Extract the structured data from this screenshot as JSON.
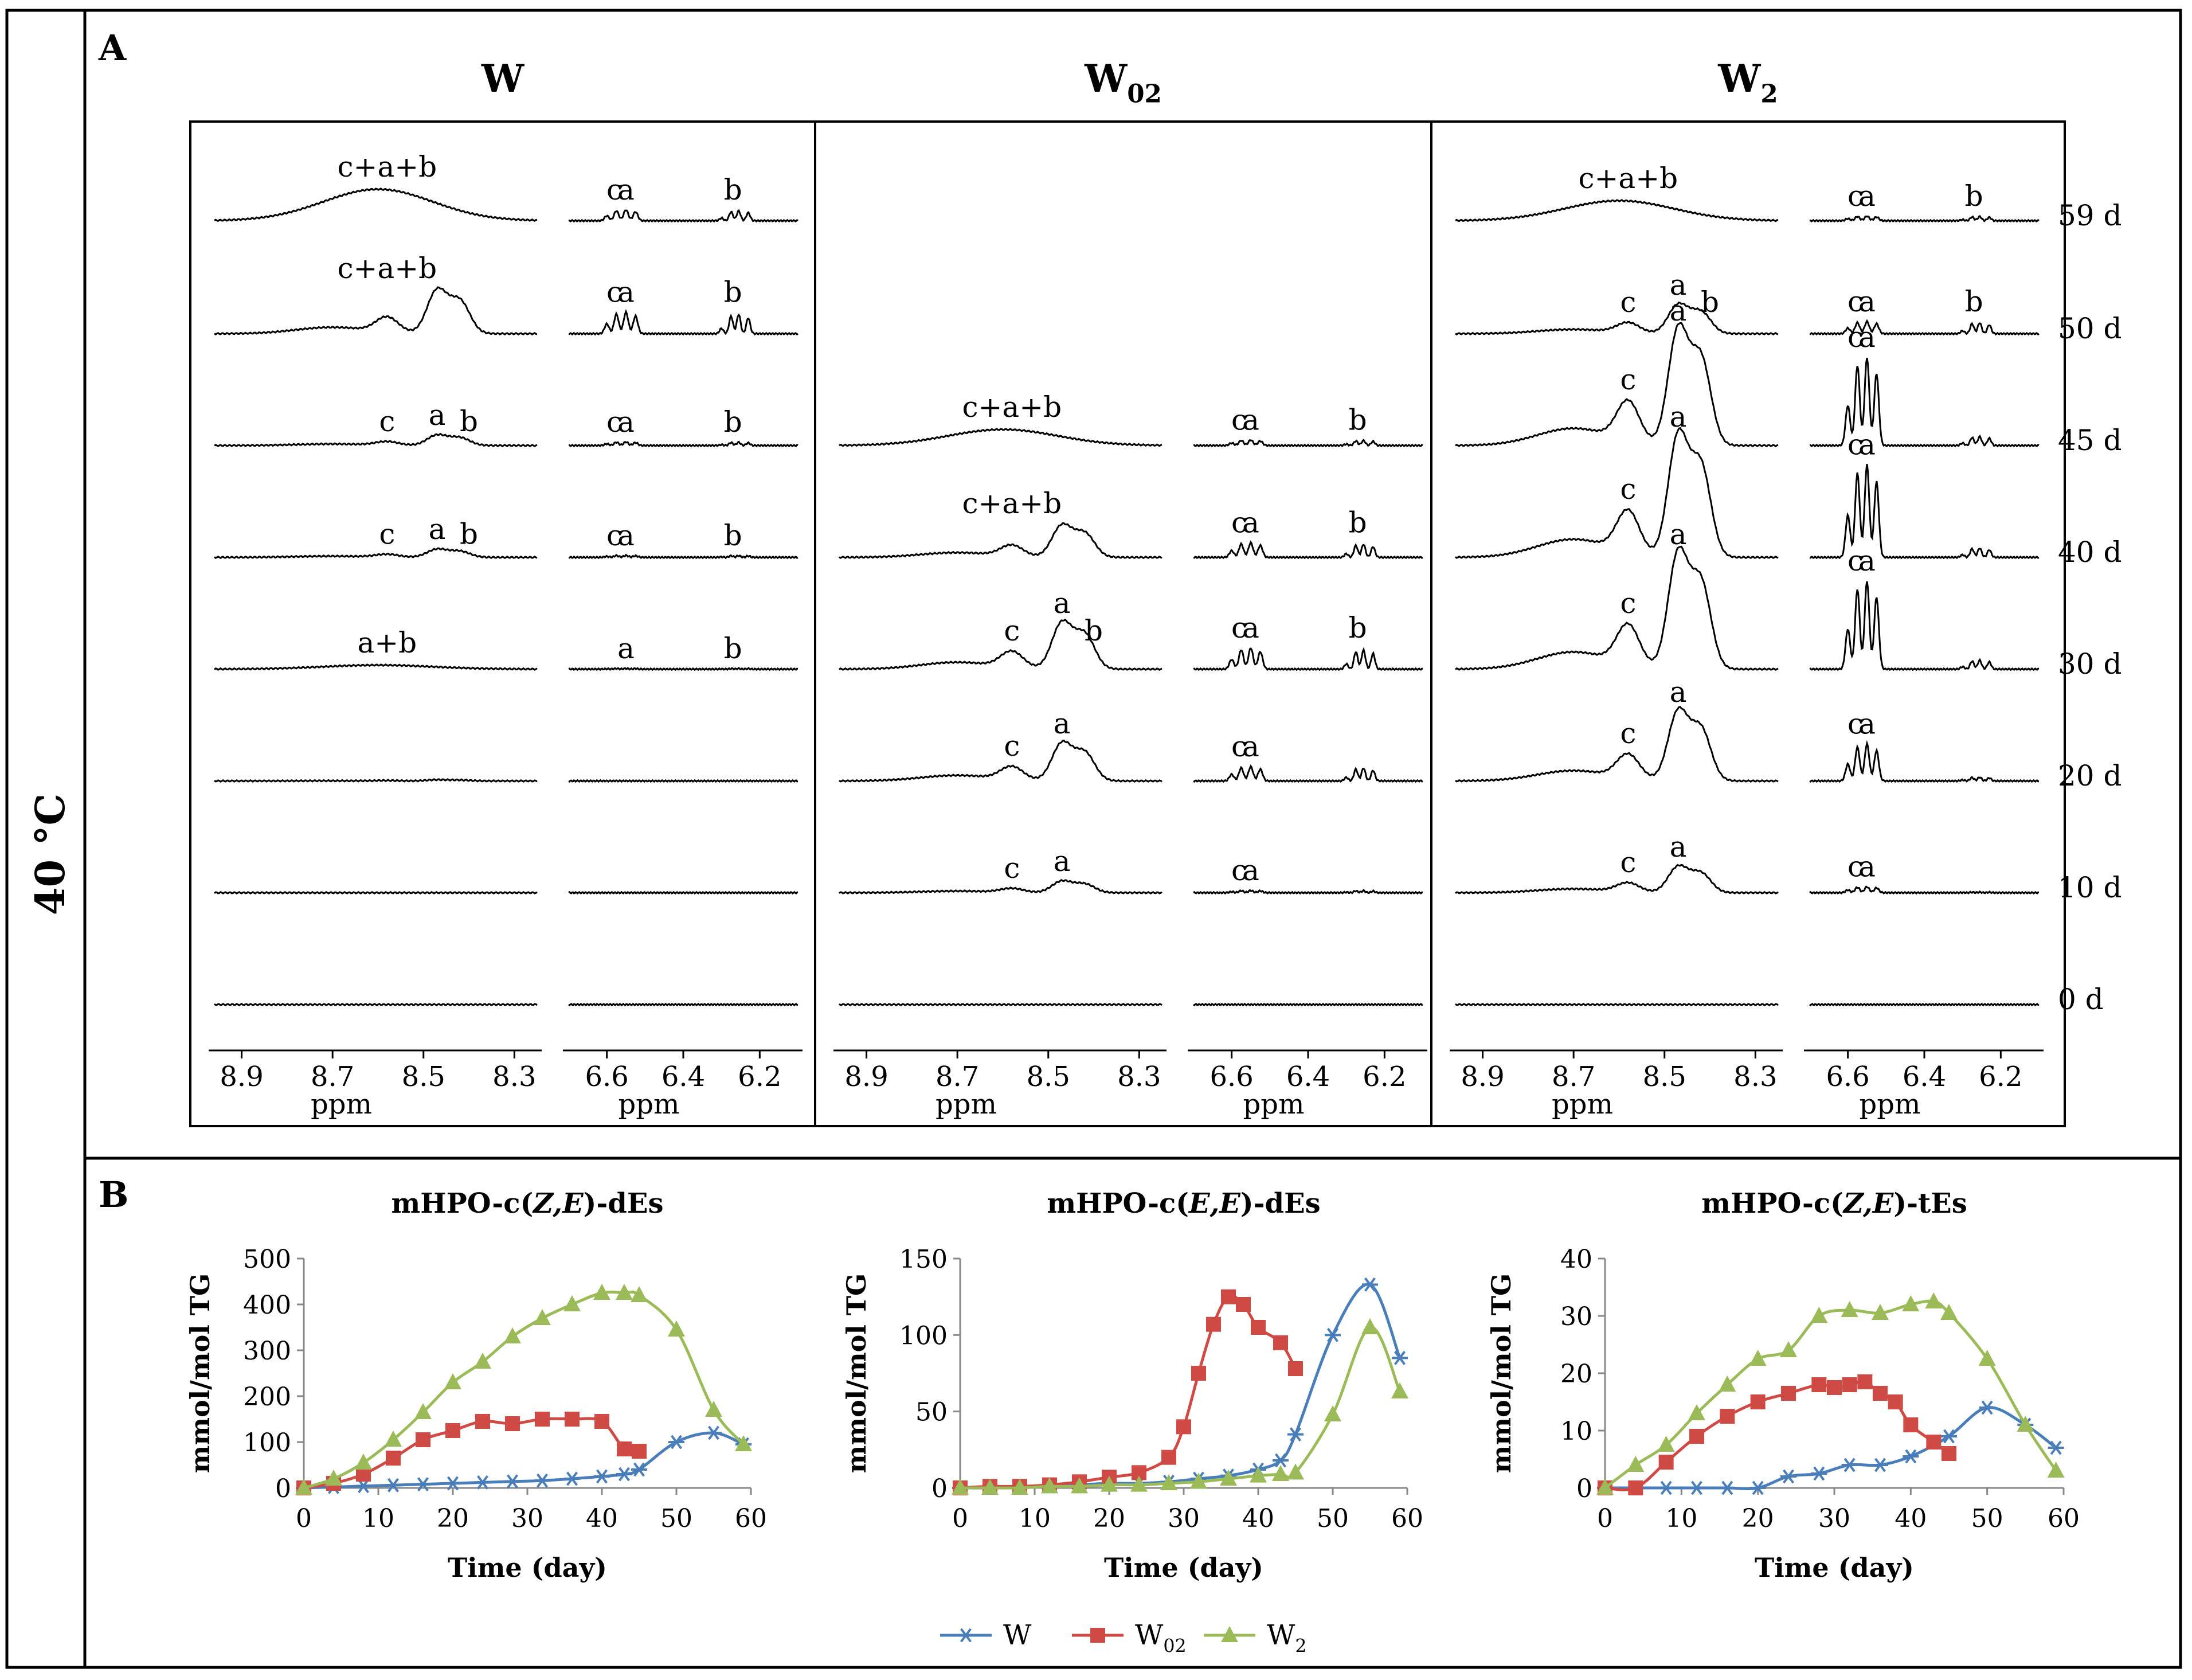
{
  "side_label": "40 °C",
  "panel_a": {
    "label": "A",
    "groups": [
      {
        "name": "W",
        "sub": ""
      },
      {
        "name": "W",
        "sub": "02"
      },
      {
        "name": "W",
        "sub": "2"
      }
    ],
    "days": [
      "59 d",
      "50 d",
      "45 d",
      "40 d",
      "30 d",
      "20 d",
      "10 d",
      "0 d"
    ],
    "axis_left_ticks": [
      "8.9",
      "8.7",
      "8.5",
      "8.3"
    ],
    "axis_right_ticks": [
      "6.6",
      "6.4",
      "6.2"
    ],
    "axis_unit": "ppm",
    "spectra_annotations": {
      "W": [
        {
          "left": [
            "c+a+b"
          ],
          "right": [
            "c",
            "a",
            "b"
          ]
        },
        {
          "left": [
            "c+a+b"
          ],
          "right": [
            "c",
            "a",
            "b"
          ]
        },
        {
          "left": [
            "c",
            "a",
            "b"
          ],
          "right": [
            "c",
            "a",
            "b"
          ]
        },
        {
          "left": [
            "c",
            "a",
            "b"
          ],
          "right": [
            "c",
            "a",
            "b"
          ]
        },
        {
          "left": [
            "a+b"
          ],
          "right": [
            "a",
            "b"
          ]
        },
        {
          "left": [],
          "right": []
        },
        {
          "left": [],
          "right": []
        },
        {
          "left": [],
          "right": []
        }
      ],
      "W02": [
        {
          "left": [],
          "right": []
        },
        {
          "left": [],
          "right": []
        },
        {
          "left": [
            "c+a+b"
          ],
          "right": [
            "c",
            "a",
            "b"
          ]
        },
        {
          "left": [
            "c+a+b"
          ],
          "right": [
            "c",
            "a",
            "b"
          ]
        },
        {
          "left": [
            "c",
            "a",
            "b"
          ],
          "right": [
            "c",
            "a",
            "b"
          ]
        },
        {
          "left": [
            "c",
            "a"
          ],
          "right": [
            "c",
            "a"
          ]
        },
        {
          "left": [
            "c",
            "a"
          ],
          "right": [
            "c",
            "a"
          ]
        },
        {
          "left": [],
          "right": []
        }
      ],
      "W2": [
        {
          "left": [
            "c+a+b"
          ],
          "right": [
            "c",
            "a",
            "b"
          ]
        },
        {
          "left": [
            "c",
            "a",
            "b"
          ],
          "right": [
            "c",
            "a",
            "b"
          ]
        },
        {
          "left": [
            "c",
            "a"
          ],
          "right": [
            "c",
            "a"
          ]
        },
        {
          "left": [
            "c",
            "a"
          ],
          "right": [
            "c",
            "a"
          ]
        },
        {
          "left": [
            "c",
            "a"
          ],
          "right": [
            "c",
            "a"
          ]
        },
        {
          "left": [
            "c",
            "a"
          ],
          "right": [
            "c",
            "a"
          ]
        },
        {
          "left": [
            "c",
            "a"
          ],
          "right": [
            "c",
            "a"
          ]
        },
        {
          "left": [],
          "right": []
        }
      ]
    }
  },
  "panel_b": {
    "label": "B",
    "legend": [
      {
        "name": "W",
        "sub": "",
        "color": "#4a7ebb",
        "marker": "star"
      },
      {
        "name": "W",
        "sub": "02",
        "color": "#d04a45",
        "marker": "square"
      },
      {
        "name": "W",
        "sub": "2",
        "color": "#9bbb59",
        "marker": "triangle"
      }
    ]
  },
  "chart_data": [
    {
      "type": "line",
      "title_parts": [
        "mHPO-c(",
        "Z,E",
        ")-dEs"
      ],
      "xlabel": "Time (day)",
      "ylabel": "mmol/mol TG",
      "xlim": [
        0,
        60
      ],
      "ylim": [
        0,
        500
      ],
      "xticks": [
        0,
        10,
        20,
        30,
        40,
        50,
        60
      ],
      "yticks": [
        0,
        100,
        200,
        300,
        400,
        500
      ],
      "series": [
        {
          "name": "W",
          "color": "#4a7ebb",
          "marker": "star",
          "x": [
            0,
            4,
            8,
            12,
            16,
            20,
            24,
            28,
            32,
            36,
            40,
            43,
            45,
            50,
            55,
            59
          ],
          "y": [
            0,
            2,
            4,
            6,
            8,
            10,
            12,
            14,
            16,
            20,
            25,
            30,
            40,
            100,
            120,
            95
          ]
        },
        {
          "name": "W02",
          "color": "#d04a45",
          "marker": "square",
          "x": [
            0,
            4,
            8,
            12,
            16,
            20,
            24,
            28,
            32,
            36,
            40,
            43,
            45
          ],
          "y": [
            0,
            10,
            30,
            65,
            105,
            125,
            145,
            140,
            150,
            150,
            145,
            85,
            80
          ]
        },
        {
          "name": "W2",
          "color": "#9bbb59",
          "marker": "triangle",
          "x": [
            0,
            4,
            8,
            12,
            16,
            20,
            24,
            28,
            32,
            36,
            40,
            43,
            45,
            50,
            55,
            59
          ],
          "y": [
            0,
            20,
            55,
            105,
            165,
            230,
            275,
            330,
            370,
            400,
            425,
            425,
            420,
            345,
            170,
            95
          ]
        }
      ]
    },
    {
      "type": "line",
      "title_parts": [
        "mHPO-c(",
        "E,E",
        ")-dEs"
      ],
      "xlabel": "Time (day)",
      "ylabel": "mmol/mol TG",
      "xlim": [
        0,
        60
      ],
      "ylim": [
        0,
        150
      ],
      "xticks": [
        0,
        10,
        20,
        30,
        40,
        50,
        60
      ],
      "yticks": [
        0,
        50,
        100,
        150
      ],
      "series": [
        {
          "name": "W",
          "color": "#4a7ebb",
          "marker": "star",
          "x": [
            0,
            4,
            8,
            12,
            16,
            20,
            24,
            28,
            32,
            36,
            40,
            43,
            45,
            50,
            55,
            59
          ],
          "y": [
            0,
            0,
            1,
            1,
            2,
            3,
            3,
            4,
            6,
            8,
            12,
            18,
            35,
            100,
            133,
            85
          ]
        },
        {
          "name": "W02",
          "color": "#d04a45",
          "marker": "square",
          "x": [
            0,
            4,
            8,
            12,
            16,
            20,
            24,
            28,
            30,
            32,
            34,
            36,
            38,
            40,
            43,
            45
          ],
          "y": [
            0,
            1,
            1,
            2,
            4,
            7,
            10,
            20,
            40,
            75,
            107,
            125,
            120,
            105,
            95,
            78
          ]
        },
        {
          "name": "W2",
          "color": "#9bbb59",
          "marker": "triangle",
          "x": [
            0,
            4,
            8,
            12,
            16,
            20,
            24,
            28,
            32,
            36,
            40,
            43,
            45,
            50,
            55,
            59
          ],
          "y": [
            0,
            0,
            0,
            1,
            1,
            2,
            2,
            3,
            4,
            6,
            8,
            9,
            10,
            48,
            105,
            63
          ]
        }
      ]
    },
    {
      "type": "line",
      "title_parts": [
        "mHPO-c(",
        "Z,E",
        ")-tEs"
      ],
      "xlabel": "Time (day)",
      "ylabel": "mmol/mol TG",
      "xlim": [
        0,
        60
      ],
      "ylim": [
        0,
        40
      ],
      "xticks": [
        0,
        10,
        20,
        30,
        40,
        50,
        60
      ],
      "yticks": [
        0,
        10,
        20,
        30,
        40
      ],
      "series": [
        {
          "name": "W",
          "color": "#4a7ebb",
          "marker": "star",
          "x": [
            0,
            4,
            8,
            12,
            16,
            20,
            24,
            28,
            32,
            36,
            40,
            45,
            50,
            55,
            59
          ],
          "y": [
            0,
            0,
            0,
            0,
            0,
            0,
            2,
            2.5,
            4,
            4,
            5.5,
            9,
            14,
            11,
            7
          ]
        },
        {
          "name": "W02",
          "color": "#d04a45",
          "marker": "square",
          "x": [
            0,
            4,
            8,
            12,
            16,
            20,
            24,
            28,
            30,
            32,
            34,
            36,
            38,
            40,
            43,
            45
          ],
          "y": [
            0,
            0,
            4.5,
            9,
            12.5,
            15,
            16.5,
            18,
            17.5,
            18,
            18.5,
            16.5,
            15,
            11,
            8,
            6
          ]
        },
        {
          "name": "W2",
          "color": "#9bbb59",
          "marker": "triangle",
          "x": [
            0,
            4,
            8,
            12,
            16,
            20,
            24,
            28,
            32,
            36,
            40,
            43,
            45,
            50,
            55,
            59
          ],
          "y": [
            0,
            4,
            7.5,
            13,
            18,
            22.5,
            24,
            30,
            31,
            30.5,
            32,
            32.5,
            30.5,
            22.5,
            11,
            3
          ]
        }
      ]
    }
  ]
}
